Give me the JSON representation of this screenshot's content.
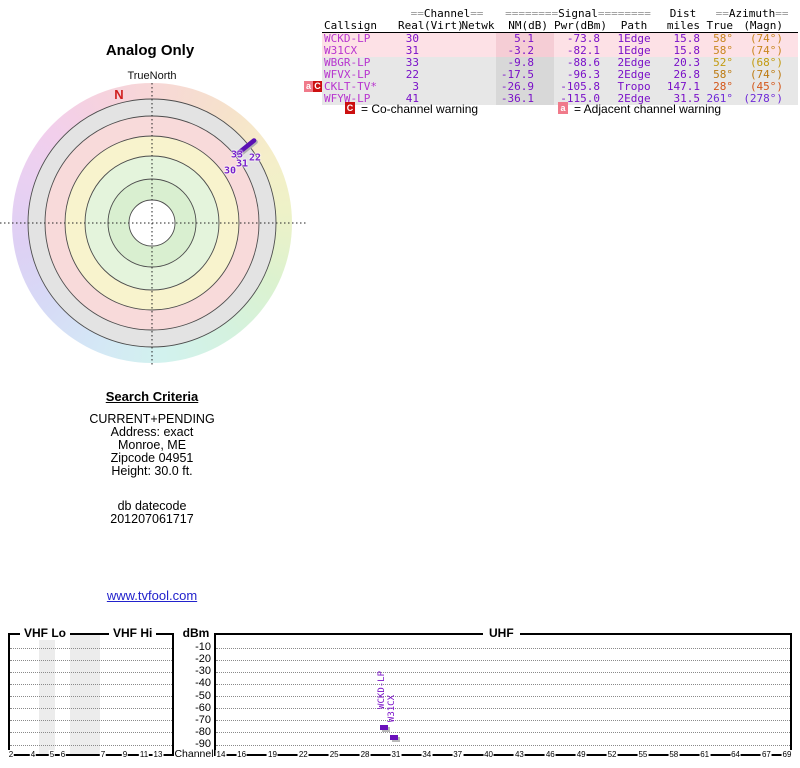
{
  "polar": {
    "title": "Analog Only",
    "north_label": "TrueNorth",
    "compass_n": "N",
    "channel_labels": [
      "33",
      "22",
      "31",
      "30"
    ]
  },
  "station_table": {
    "group_headers": {
      "channel_pre": "==",
      "channel": "Channel",
      "channel_post": "==",
      "signal_pre": "========",
      "signal": "Signal",
      "signal_post": "========",
      "dist": "Dist",
      "azimuth_pre": "==",
      "azimuth": "Azimuth",
      "azimuth_post": "=="
    },
    "col_headers": {
      "callsign": "Callsign",
      "real": "Real",
      "virt": "(Virt)",
      "netwk": "Netwk",
      "nm": "NM(dB)",
      "pwr": "Pwr(dBm)",
      "path": "Path",
      "miles": "miles",
      "true_az": "True",
      "magn": "(Magn)"
    },
    "rows": [
      {
        "warn_a": "",
        "warn_c": "",
        "callsign": "WCKD-LP",
        "real": "30",
        "virt": "",
        "netwk": "",
        "nm": "5.1",
        "pwr": "-73.8",
        "path": "1Edge",
        "miles": "15.8",
        "true_az": "58°",
        "magn": "(74°)",
        "az_color": "#c8861e"
      },
      {
        "warn_a": "",
        "warn_c": "",
        "callsign": "W31CX",
        "real": "31",
        "virt": "",
        "netwk": "",
        "nm": "-3.2",
        "pwr": "-82.1",
        "path": "1Edge",
        "miles": "15.8",
        "true_az": "58°",
        "magn": "(74°)",
        "az_color": "#c8861e"
      },
      {
        "warn_a": "",
        "warn_c": "",
        "callsign": "WBGR-LP",
        "real": "33",
        "virt": "",
        "netwk": "",
        "nm": "-9.8",
        "pwr": "-88.6",
        "path": "2Edge",
        "miles": "20.3",
        "true_az": "52°",
        "magn": "(68°)",
        "az_color": "#c39a10"
      },
      {
        "warn_a": "",
        "warn_c": "",
        "callsign": "WFVX-LP",
        "real": "22",
        "virt": "",
        "netwk": "",
        "nm": "-17.5",
        "pwr": "-96.3",
        "path": "2Edge",
        "miles": "26.8",
        "true_az": "58°",
        "magn": "(74°)",
        "az_color": "#bd7a10"
      },
      {
        "warn_a": "a",
        "warn_c": "C",
        "callsign": "CKLT-TV*",
        "real": "3",
        "virt": "",
        "netwk": "",
        "nm": "-26.9",
        "pwr": "-105.8",
        "path": "Tropo",
        "miles": "147.1",
        "true_az": "28°",
        "magn": "(45°)",
        "az_color": "#d4571a"
      },
      {
        "warn_a": "",
        "warn_c": "",
        "callsign": "WFYW-LP",
        "real": "41",
        "virt": "",
        "netwk": "",
        "nm": "-36.1",
        "pwr": "-115.0",
        "path": "2Edge",
        "miles": "31.5",
        "true_az": "261°",
        "magn": "(278°)",
        "az_color": "#6f2ad8"
      }
    ],
    "legend": {
      "co_icon": "C",
      "co_text": "= Co-channel warning",
      "adj_icon": "a",
      "adj_text": "= Adjacent channel warning"
    }
  },
  "criteria": {
    "title": "Search Criteria",
    "lines": [
      "CURRENT+PENDING",
      "Address: exact",
      "Monroe, ME",
      "Zipcode 04951",
      "Height: 30.0 ft."
    ],
    "db_label": "db datecode",
    "db_value": "201207061717"
  },
  "link_text": "www.tvfool.com",
  "chart_labels": {
    "dbm": "dBm",
    "channel": "Channel",
    "vhf_lo": "VHF Lo",
    "vhf_hi": "VHF Hi",
    "uhf": "UHF"
  },
  "colors": {
    "bar_purple": "#6a10bb",
    "callsign_magenta": "#b835cf",
    "value_purple": "#7a10c8",
    "warn_red": "#cc1010",
    "warn_pink": "#f07a8a",
    "link_blue": "#2222cc",
    "north_red": "#d02020"
  },
  "chart_data": [
    {
      "type": "radar",
      "title": "Analog Only",
      "orientation_label": "TrueNorth",
      "north_marker": "N",
      "rings": 6,
      "marker": {
        "azimuth_true_deg": 58,
        "channel_labels": [
          33,
          22,
          31,
          30
        ]
      }
    },
    {
      "type": "bar",
      "xlabel": "Channel",
      "ylabel": "dBm",
      "ylim": [
        -95,
        -5
      ],
      "grid": true,
      "sections": [
        "VHF Lo",
        "VHF Hi",
        "UHF"
      ],
      "dbm_ticks": [
        -10,
        -20,
        -30,
        -40,
        -50,
        -60,
        -70,
        -80,
        -90
      ],
      "vhf_ticks": [
        "2",
        "4",
        "5",
        "6",
        "7",
        "9",
        "11",
        "13"
      ],
      "uhf_ticks": [
        14,
        16,
        19,
        22,
        25,
        28,
        31,
        34,
        37,
        40,
        43,
        46,
        49,
        52,
        55,
        58,
        61,
        64,
        67,
        69
      ],
      "bars": [
        {
          "label": "WCKD-LP",
          "channel": 30,
          "pwr_dbm": -73.8
        },
        {
          "label": "W31CX",
          "channel": 31,
          "pwr_dbm": -82.1
        }
      ]
    }
  ]
}
